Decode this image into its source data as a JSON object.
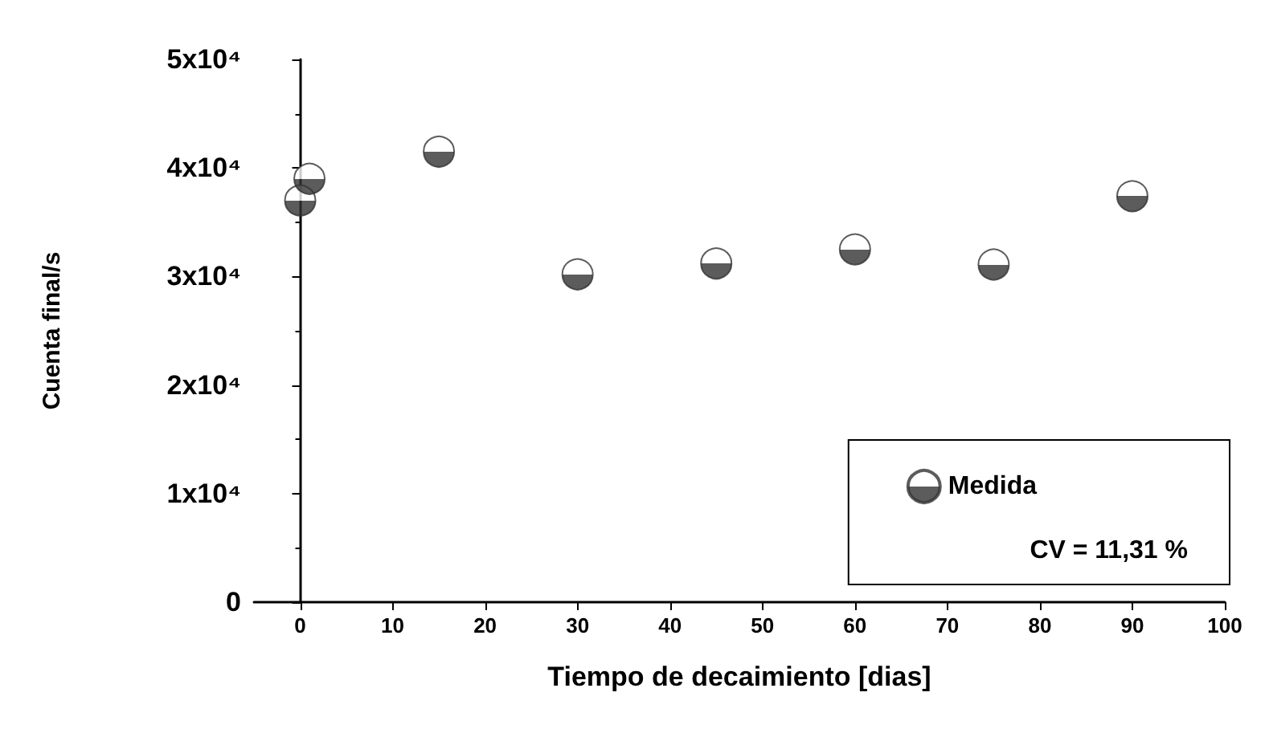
{
  "chart_data": {
    "type": "scatter",
    "xlabel": "Tiempo de decaimiento [dias]",
    "ylabel": "Cuenta final/s",
    "x": [
      0,
      1,
      15,
      30,
      45,
      60,
      75,
      90
    ],
    "series": [
      {
        "name": "Medida",
        "color": "#333333",
        "values": [
          37000,
          39000,
          41500,
          30200,
          31200,
          32500,
          31100,
          37400
        ]
      }
    ],
    "xlim": [
      -5,
      100
    ],
    "xticks": [
      0,
      10,
      20,
      30,
      40,
      50,
      60,
      70,
      80,
      90,
      100
    ],
    "ylim": [
      0,
      50000
    ],
    "yticks": [
      {
        "value": 0,
        "label": "0"
      },
      {
        "value": 10000,
        "label": "1x10⁴"
      },
      {
        "value": 20000,
        "label": "2x10⁴"
      },
      {
        "value": 30000,
        "label": "3x10⁴"
      },
      {
        "value": 40000,
        "label": "4x10⁴"
      },
      {
        "value": 50000,
        "label": "5x10⁴"
      }
    ],
    "annotations": [
      "CV = 11,31 %"
    ],
    "legend": "bottom right",
    "marker": "circle",
    "grid": false
  }
}
